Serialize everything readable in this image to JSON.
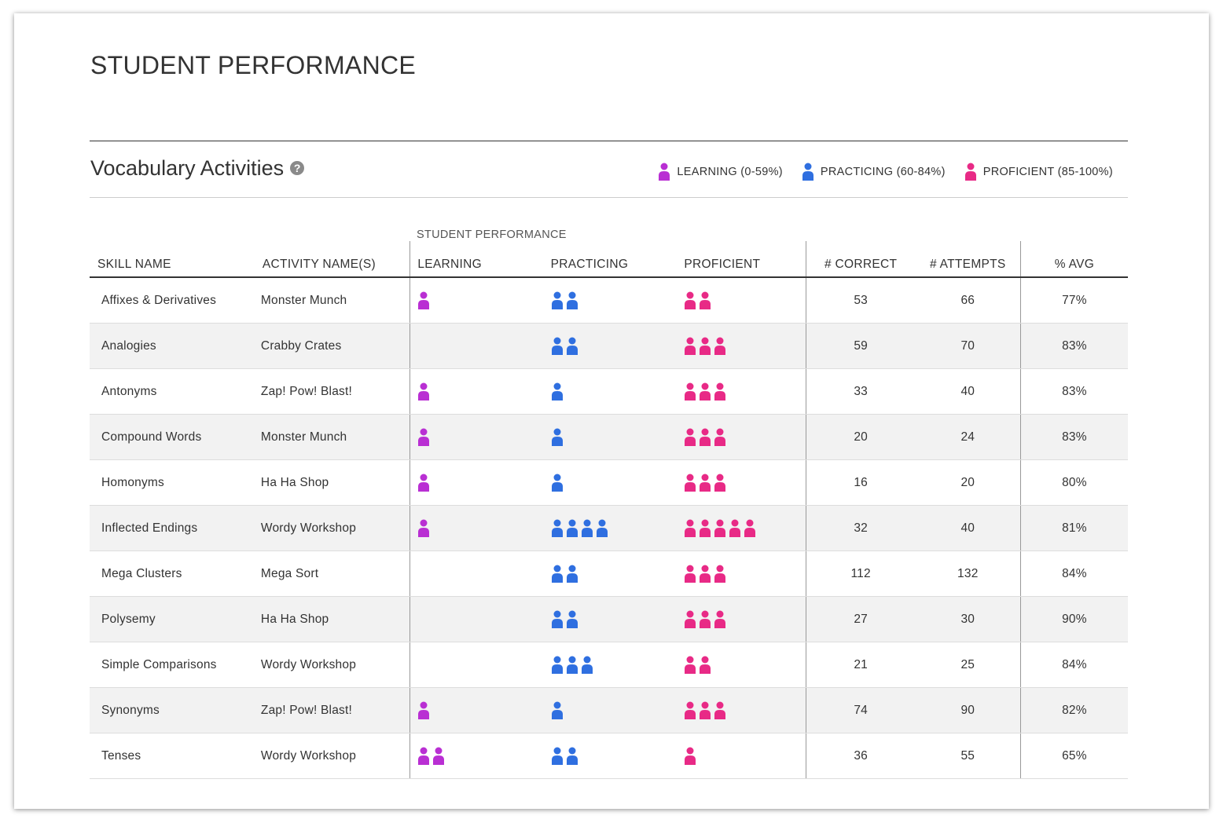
{
  "page_title": "STUDENT PERFORMANCE",
  "section": {
    "title": "Vocabulary Activities",
    "help_icon": "question-circle-icon"
  },
  "colors": {
    "learning": "#b92fd3",
    "practicing": "#2f6fe0",
    "proficient": "#e82a86"
  },
  "legend": [
    {
      "key": "learning",
      "label": "LEARNING (0-59%)"
    },
    {
      "key": "practicing",
      "label": "PRACTICING (60-84%)"
    },
    {
      "key": "proficient",
      "label": "PROFICIENT (85-100%)"
    }
  ],
  "table": {
    "group_header": "STUDENT PERFORMANCE",
    "columns": {
      "skill": "SKILL NAME",
      "activity": "ACTIVITY NAME(S)",
      "learning": "LEARNING",
      "practicing": "PRACTICING",
      "proficient": "PROFICIENT",
      "correct": "# CORRECT",
      "attempts": "# ATTEMPTS",
      "avg": "% AVG"
    },
    "rows": [
      {
        "skill": "Affixes & Derivatives",
        "activity": "Monster Munch",
        "learning": 1,
        "practicing": 2,
        "proficient": 2,
        "correct": "53",
        "attempts": "66",
        "avg": "77%"
      },
      {
        "skill": "Analogies",
        "activity": "Crabby Crates",
        "learning": 0,
        "practicing": 2,
        "proficient": 3,
        "correct": "59",
        "attempts": "70",
        "avg": "83%"
      },
      {
        "skill": "Antonyms",
        "activity": "Zap! Pow! Blast!",
        "learning": 1,
        "practicing": 1,
        "proficient": 3,
        "correct": "33",
        "attempts": "40",
        "avg": "83%"
      },
      {
        "skill": "Compound Words",
        "activity": "Monster Munch",
        "learning": 1,
        "practicing": 1,
        "proficient": 3,
        "correct": "20",
        "attempts": "24",
        "avg": "83%"
      },
      {
        "skill": "Homonyms",
        "activity": "Ha Ha Shop",
        "learning": 1,
        "practicing": 1,
        "proficient": 3,
        "correct": "16",
        "attempts": "20",
        "avg": "80%"
      },
      {
        "skill": "Inflected Endings",
        "activity": "Wordy Workshop",
        "learning": 1,
        "practicing": 4,
        "proficient": 5,
        "correct": "32",
        "attempts": "40",
        "avg": "81%"
      },
      {
        "skill": "Mega Clusters",
        "activity": "Mega Sort",
        "learning": 0,
        "practicing": 2,
        "proficient": 3,
        "correct": "112",
        "attempts": "132",
        "avg": "84%"
      },
      {
        "skill": "Polysemy",
        "activity": "Ha Ha Shop",
        "learning": 0,
        "practicing": 2,
        "proficient": 3,
        "correct": "27",
        "attempts": "30",
        "avg": "90%"
      },
      {
        "skill": "Simple Comparisons",
        "activity": "Wordy Workshop",
        "learning": 0,
        "practicing": 3,
        "proficient": 2,
        "correct": "21",
        "attempts": "25",
        "avg": "84%"
      },
      {
        "skill": "Synonyms",
        "activity": "Zap! Pow! Blast!",
        "learning": 1,
        "practicing": 1,
        "proficient": 3,
        "correct": "74",
        "attempts": "90",
        "avg": "82%"
      },
      {
        "skill": "Tenses",
        "activity": "Wordy Workshop",
        "learning": 2,
        "practicing": 2,
        "proficient": 1,
        "correct": "36",
        "attempts": "55",
        "avg": "65%"
      }
    ]
  }
}
